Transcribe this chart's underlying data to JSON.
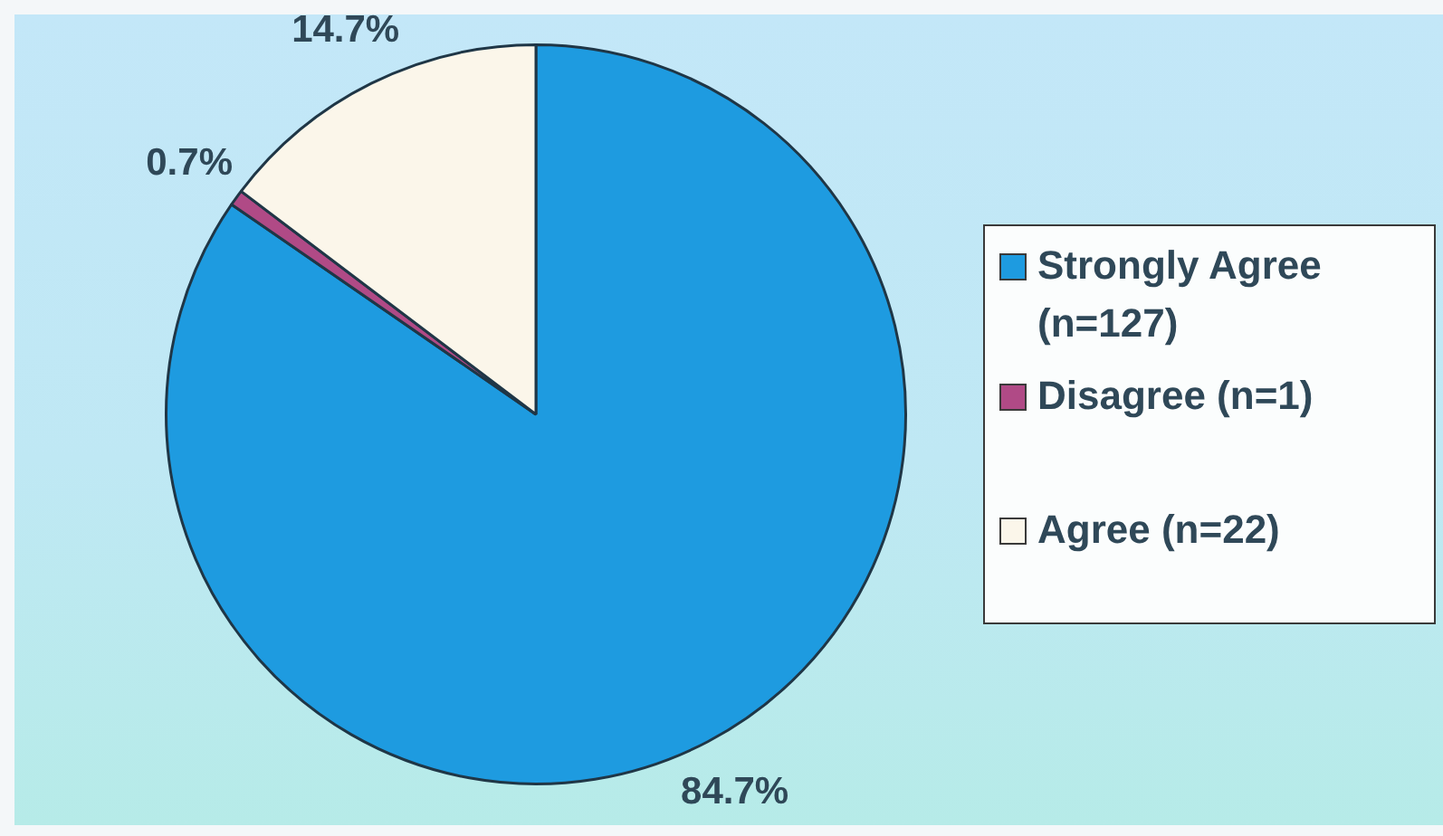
{
  "chart_data": {
    "type": "pie",
    "categories": [
      "Strongly Agree (n=127)",
      "Disagree (n=1)",
      "Agree (n=22)"
    ],
    "values": [
      84.7,
      0.7,
      14.7
    ],
    "colors": [
      "#1e9be0",
      "#b04a86",
      "#fbf6ea"
    ],
    "value_labels": [
      "84.7%",
      "0.7%",
      "14.7%"
    ],
    "legend": "right"
  }
}
